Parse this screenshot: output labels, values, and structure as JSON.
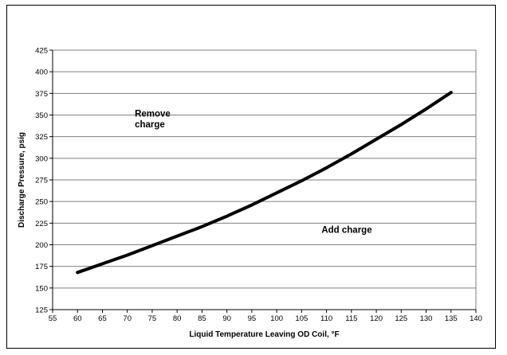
{
  "chart_data": {
    "type": "line",
    "title": "",
    "xlabel": "Liquid Temperature Leaving OD Coil, °F",
    "ylabel": "Discharge Pressure, psig",
    "xlim": [
      55,
      140
    ],
    "ylim": [
      125,
      425
    ],
    "xticks": [
      "55",
      "60",
      "65",
      "70",
      "75",
      "80",
      "85",
      "90",
      "95",
      "100",
      "105",
      "110",
      "115",
      "120",
      "125",
      "130",
      "135",
      "140"
    ],
    "yticks": [
      "125",
      "150",
      "175",
      "200",
      "225",
      "250",
      "275",
      "300",
      "325",
      "350",
      "375",
      "400",
      "425"
    ],
    "grid": "horizontal",
    "series": [
      {
        "color": "#000000",
        "x": [
          60,
          65,
          70,
          75,
          80,
          85,
          90,
          95,
          100,
          105,
          110,
          115,
          120,
          125,
          130,
          135
        ],
        "y": [
          168,
          178,
          188,
          199,
          210,
          221,
          233,
          246,
          260,
          274,
          289,
          305,
          322,
          339,
          357,
          376
        ]
      }
    ],
    "annotations": [
      {
        "lines": [
          "Remove",
          "charge"
        ],
        "x": 71.5,
        "y": 348
      },
      {
        "lines": [
          "Add charge"
        ],
        "x": 109,
        "y": 214
      }
    ]
  }
}
